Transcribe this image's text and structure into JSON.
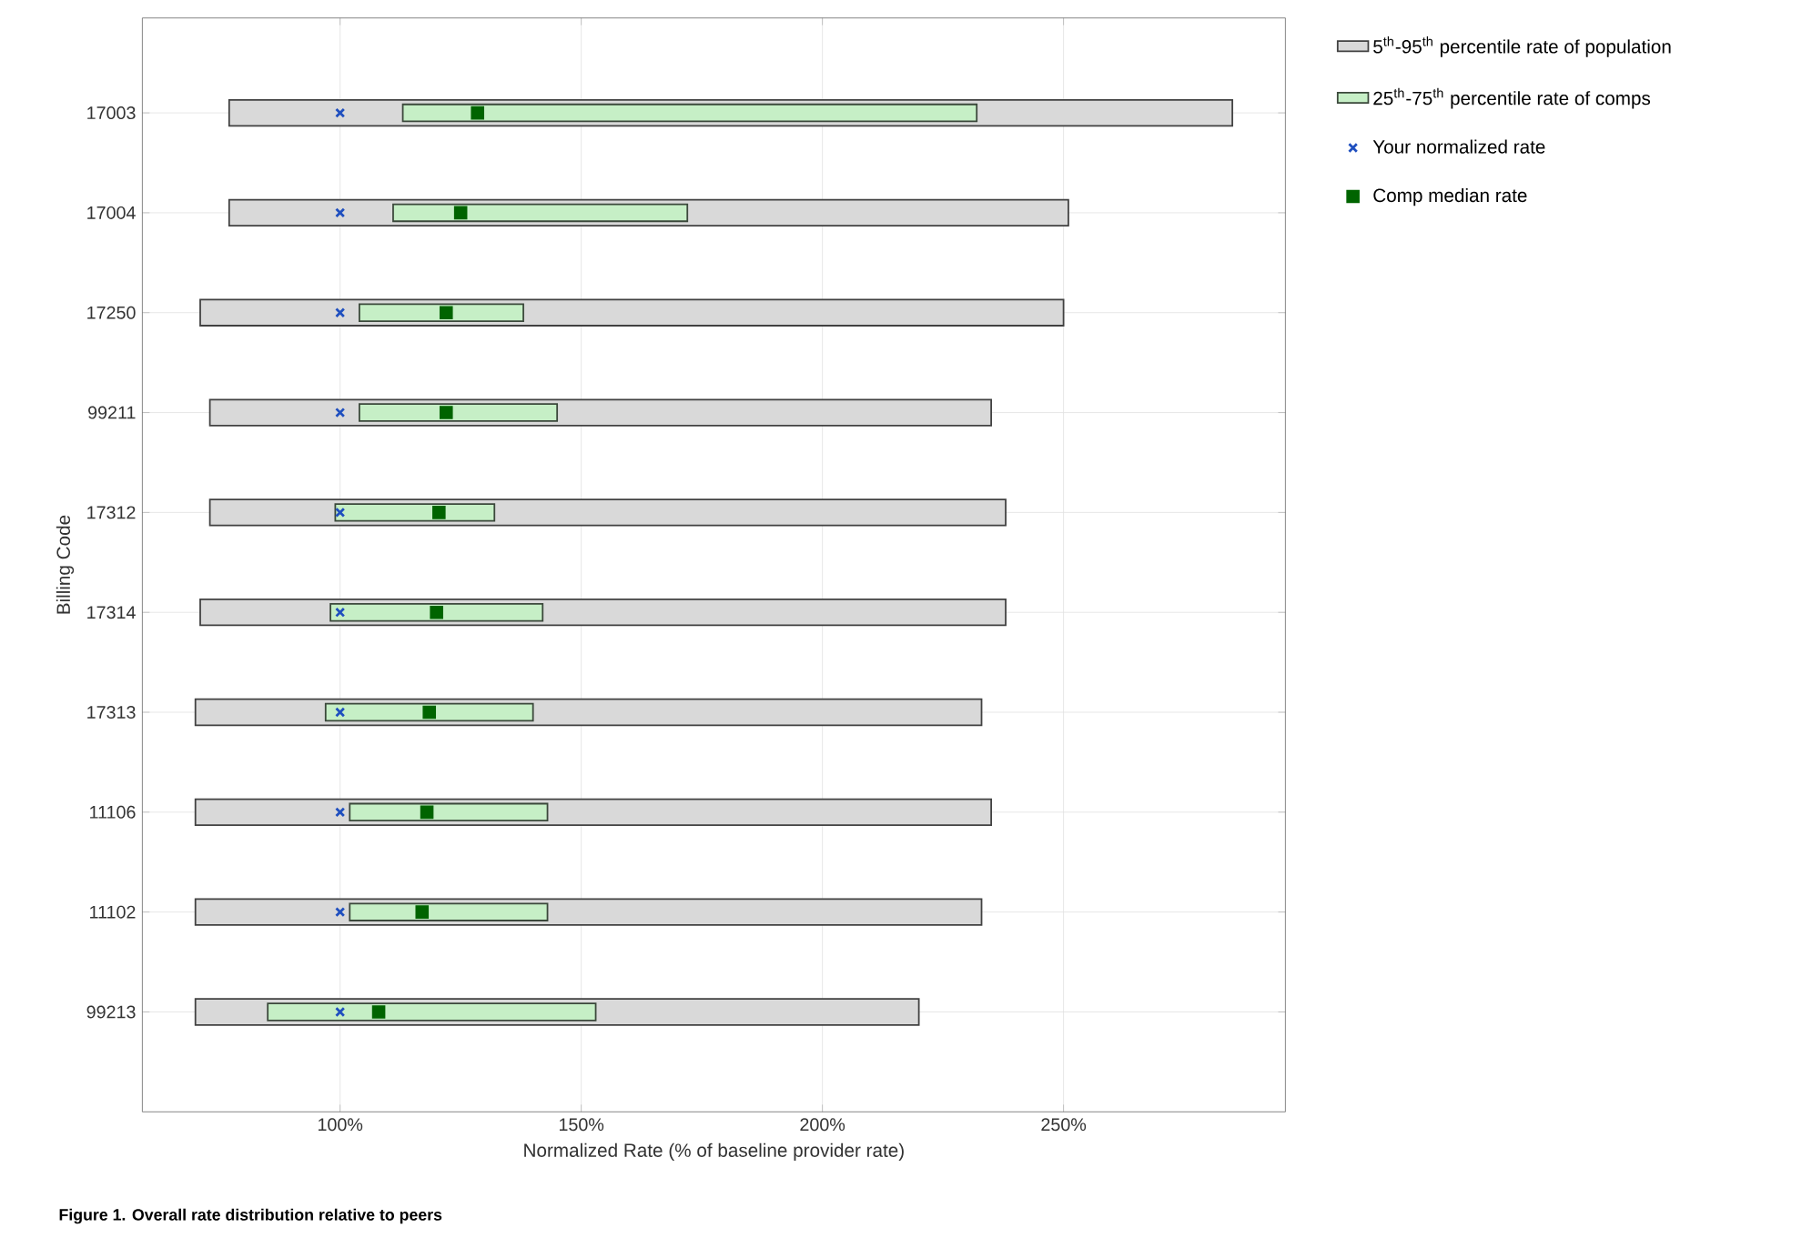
{
  "chart_data": {
    "type": "bar",
    "orientation": "horizontal",
    "xlabel": "Normalized Rate (% of baseline provider rate)",
    "ylabel": "Billing Code",
    "categories": [
      "17003",
      "17004",
      "17250",
      "99211",
      "17312",
      "17314",
      "17313",
      "11106",
      "11102",
      "99213"
    ],
    "series": [
      {
        "name": "5$^{th}$-95$^{th}$ percentile rate of population",
        "color": "#d9d9d9",
        "base": [
          77,
          77,
          71,
          73,
          73,
          71,
          70,
          70,
          70,
          70
        ],
        "values": [
          208,
          174,
          179,
          162,
          165,
          167,
          163,
          165,
          163,
          150
        ]
      },
      {
        "name": "25$^{th}$-75$^{th}$ percentile rate of comps",
        "color": "#c6efc6",
        "base": [
          113,
          111,
          104,
          104,
          99,
          98,
          97,
          102,
          102,
          85
        ],
        "values": [
          119,
          61,
          34,
          41,
          33,
          44,
          43,
          41,
          41,
          68
        ]
      },
      {
        "name": "Your normalized rate",
        "type": "scatter",
        "marker": "cross",
        "color": "#1f4fbf",
        "values": [
          100,
          100,
          100,
          100,
          100,
          100,
          100,
          100,
          100,
          100
        ]
      },
      {
        "name": "Comp median rate",
        "type": "scatter",
        "marker": "square",
        "color": "#006400",
        "values": [
          128.5,
          125,
          122,
          122,
          120.5,
          120,
          118.5,
          118,
          117,
          108
        ]
      }
    ],
    "xlim": [
      59,
      296
    ],
    "xticks": [
      {
        "value": 100,
        "label": "100%"
      },
      {
        "value": 150,
        "label": "150%"
      },
      {
        "value": 200,
        "label": "200%"
      },
      {
        "value": 250,
        "label": "250%"
      }
    ],
    "grid": true,
    "legend": "right",
    "annotations": [
      "Figure 1. Overall rate distribution relative to peers"
    ]
  }
}
